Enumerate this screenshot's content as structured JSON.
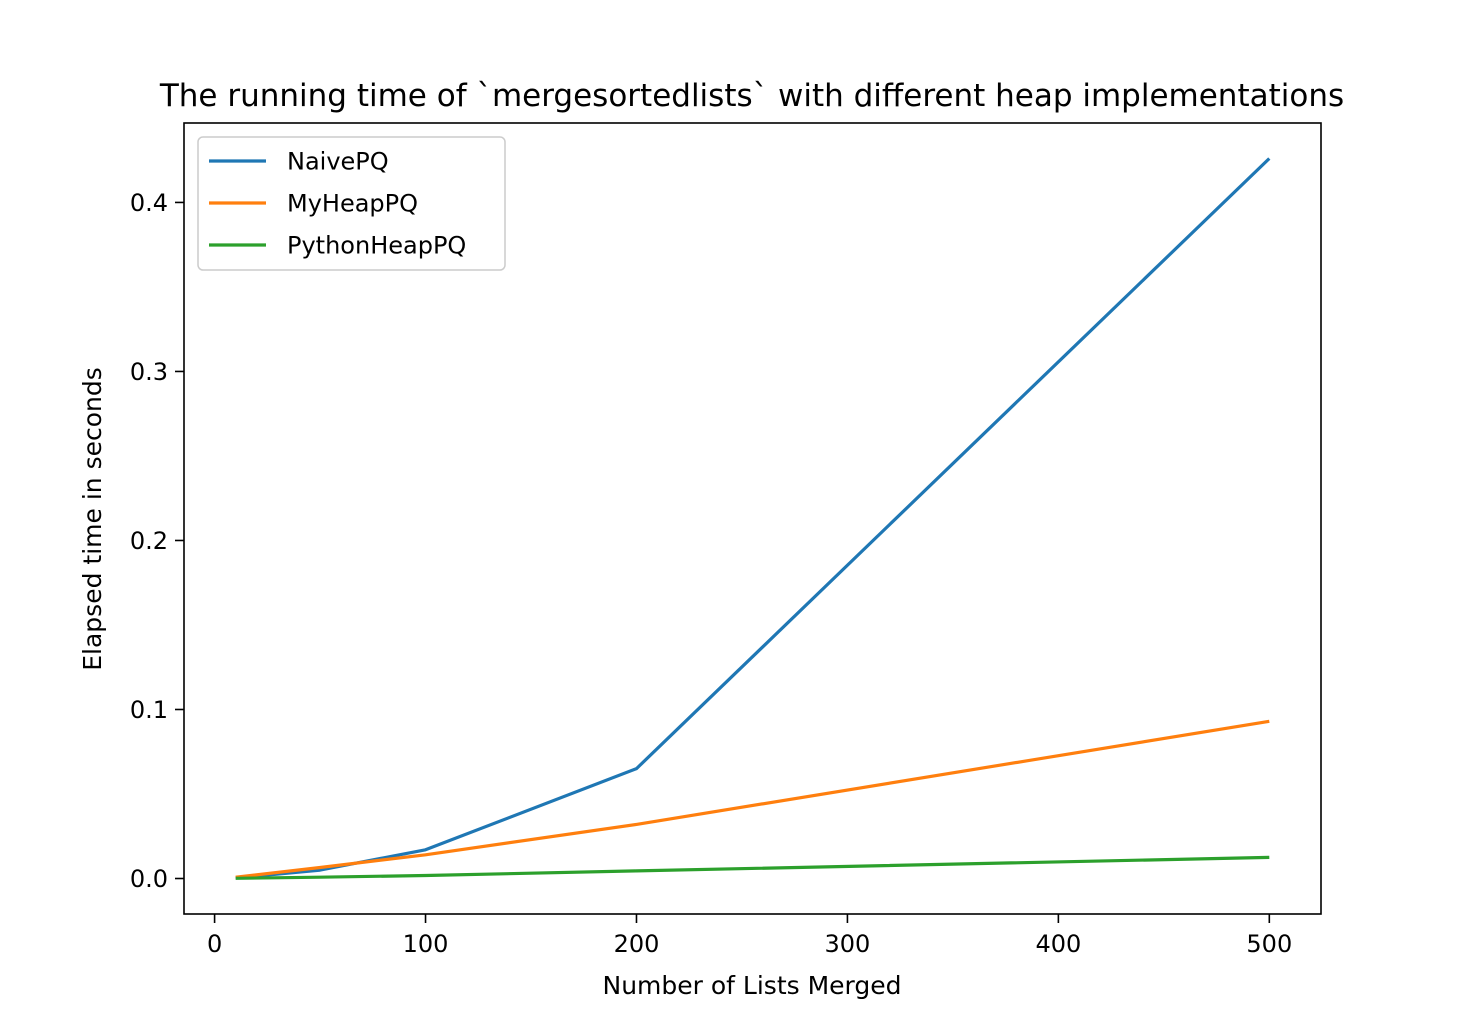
{
  "chart_data": {
    "type": "line",
    "title": "The running time of `mergesortedlists` with different heap implementations",
    "xlabel": "Number of Lists Merged",
    "ylabel": "Elapsed time in seconds",
    "xlim": [
      -14.5,
      524.5
    ],
    "ylim": [
      -0.021,
      0.447
    ],
    "xticks": [
      0,
      100,
      200,
      300,
      400,
      500
    ],
    "xtick_labels": [
      "0",
      "100",
      "200",
      "300",
      "400",
      "500"
    ],
    "yticks": [
      0.0,
      0.1,
      0.2,
      0.3,
      0.4
    ],
    "ytick_labels": [
      "0.0",
      "0.1",
      "0.2",
      "0.3",
      "0.4"
    ],
    "grid": false,
    "legend": "top-left",
    "x": [
      10,
      50,
      100,
      200,
      500
    ],
    "series": [
      {
        "name": "NaivePQ",
        "color": "#1f77b4",
        "values": [
          0.0003,
          0.005,
          0.017,
          0.065,
          0.426
        ]
      },
      {
        "name": "MyHeapPQ",
        "color": "#ff7f0e",
        "values": [
          0.0008,
          0.0065,
          0.014,
          0.032,
          0.093
        ]
      },
      {
        "name": "PythonHeapPQ",
        "color": "#2ca02c",
        "values": [
          0.0001,
          0.0008,
          0.0018,
          0.0045,
          0.0125
        ]
      }
    ]
  }
}
